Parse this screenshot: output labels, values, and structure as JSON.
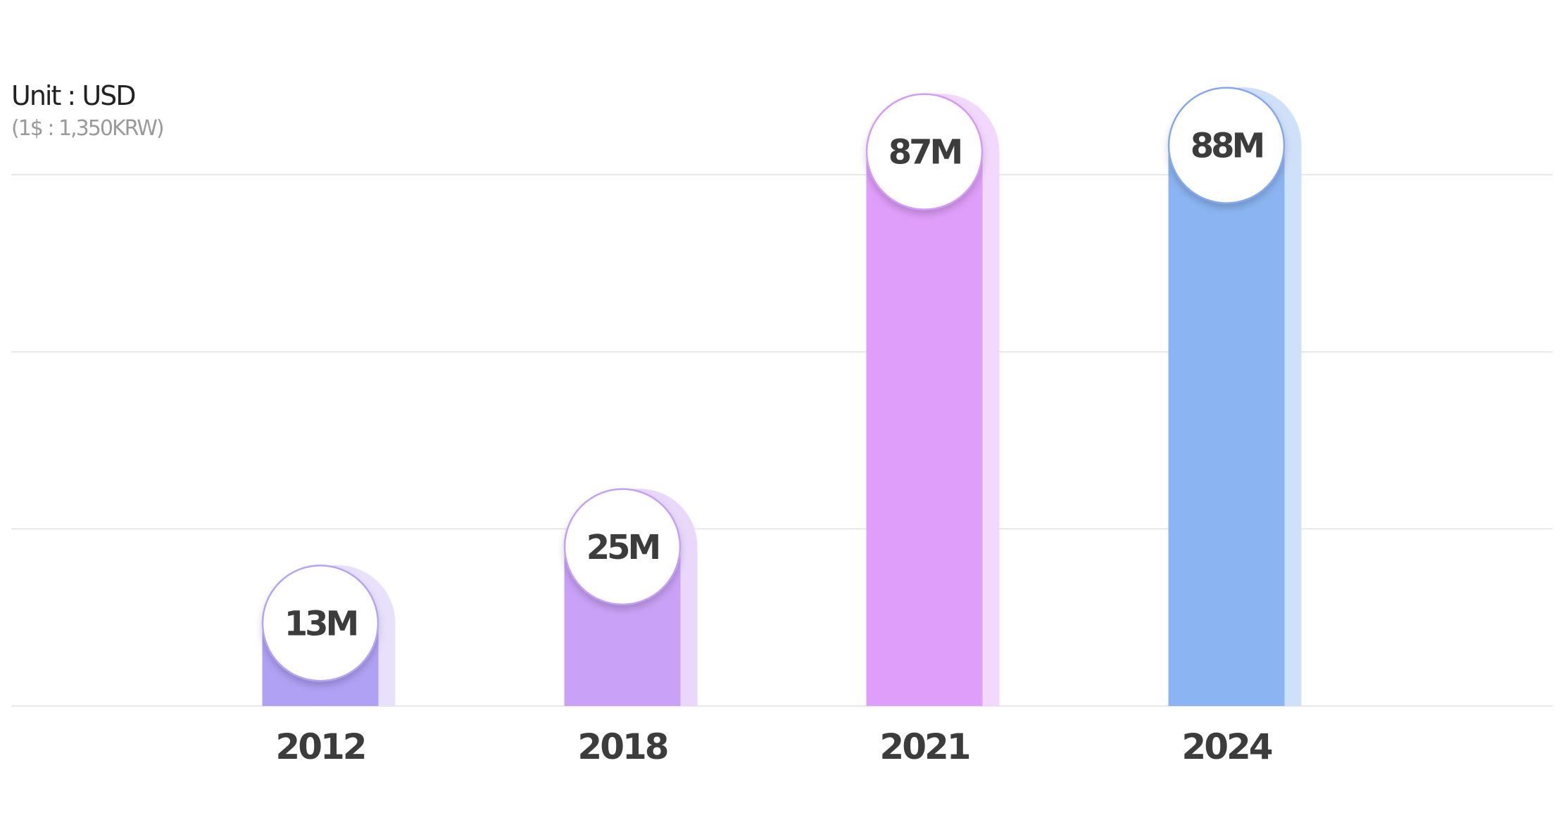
{
  "header": {
    "unit_label": "Unit : USD",
    "unit_sub": "(1$ : 1,350KRW)"
  },
  "chart_data": {
    "type": "bar",
    "categories": [
      "2012",
      "2018",
      "2021",
      "2024"
    ],
    "values": [
      13,
      25,
      87,
      88
    ],
    "value_labels": [
      "13M",
      "25M",
      "87M",
      "88M"
    ],
    "ylim": [
      0,
      90
    ],
    "grid": true,
    "colors": {
      "bars": [
        "#b1a1f5",
        "#c9a1f7",
        "#df9efa",
        "#8bb5f2"
      ],
      "shadows": [
        "#e9e0fb",
        "#ead8fb",
        "#f2d8fc",
        "#cfe0f9"
      ],
      "bubble_rings": [
        "#b7a3f3",
        "#c59ff3",
        "#d49af5",
        "#86a6ee"
      ],
      "grid": "#e1e1e1",
      "text": "#3c3c3c"
    }
  }
}
